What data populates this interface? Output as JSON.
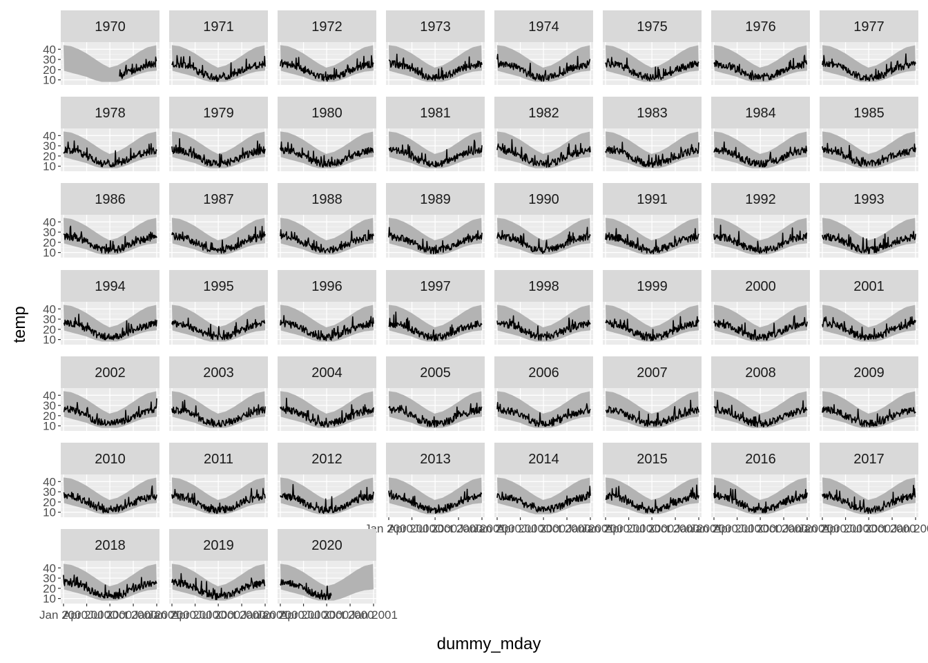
{
  "chart_data": {
    "type": "line",
    "facet_layout": "facet_wrap",
    "ncol": 8,
    "xlabel": "dummy_mday",
    "ylabel": "temp",
    "ylim": [
      5,
      47
    ],
    "y_ticks": [
      10,
      20,
      30,
      40
    ],
    "x_tick_text": [
      "Jan 2000",
      "Apr 2000",
      "Jul 2000",
      "Oct 2000",
      "Jan 2001"
    ],
    "x_tick_doy": [
      0,
      91,
      182,
      274,
      366
    ],
    "grid": true,
    "band_description": "daily min-max envelope across all years",
    "band_color": "#b3b3b3",
    "line_color": "#000000",
    "strip_color": "#d9d9d9",
    "panel_background": "#ebebeb",
    "climatology": {
      "day_of_year": [
        0,
        30,
        60,
        90,
        120,
        150,
        180,
        210,
        240,
        270,
        300,
        330,
        366
      ],
      "band_upper": [
        44,
        43,
        40,
        36,
        31,
        26,
        22,
        24,
        28,
        33,
        38,
        42,
        44
      ],
      "band_lower": [
        19,
        17,
        15,
        13,
        10,
        8,
        8,
        8,
        10,
        13,
        16,
        18,
        19
      ],
      "typical_temp": [
        26,
        25,
        24,
        20,
        16,
        13,
        12,
        13,
        15,
        19,
        22,
        24,
        26
      ]
    },
    "panels": [
      {
        "year": "1970",
        "data_start_doy": 220,
        "data_end_doy": 366
      },
      {
        "year": "1971",
        "data_start_doy": 0,
        "data_end_doy": 366
      },
      {
        "year": "1972",
        "data_start_doy": 0,
        "data_end_doy": 366
      },
      {
        "year": "1973",
        "data_start_doy": 0,
        "data_end_doy": 366
      },
      {
        "year": "1974",
        "data_start_doy": 0,
        "data_end_doy": 366
      },
      {
        "year": "1975",
        "data_start_doy": 0,
        "data_end_doy": 366
      },
      {
        "year": "1976",
        "data_start_doy": 0,
        "data_end_doy": 366
      },
      {
        "year": "1977",
        "data_start_doy": 0,
        "data_end_doy": 366
      },
      {
        "year": "1978",
        "data_start_doy": 0,
        "data_end_doy": 366
      },
      {
        "year": "1979",
        "data_start_doy": 0,
        "data_end_doy": 366
      },
      {
        "year": "1980",
        "data_start_doy": 0,
        "data_end_doy": 366
      },
      {
        "year": "1981",
        "data_start_doy": 0,
        "data_end_doy": 366
      },
      {
        "year": "1982",
        "data_start_doy": 0,
        "data_end_doy": 366
      },
      {
        "year": "1983",
        "data_start_doy": 0,
        "data_end_doy": 366
      },
      {
        "year": "1984",
        "data_start_doy": 0,
        "data_end_doy": 366
      },
      {
        "year": "1985",
        "data_start_doy": 0,
        "data_end_doy": 366
      },
      {
        "year": "1986",
        "data_start_doy": 0,
        "data_end_doy": 366
      },
      {
        "year": "1987",
        "data_start_doy": 0,
        "data_end_doy": 366
      },
      {
        "year": "1988",
        "data_start_doy": 0,
        "data_end_doy": 366
      },
      {
        "year": "1989",
        "data_start_doy": 0,
        "data_end_doy": 366
      },
      {
        "year": "1990",
        "data_start_doy": 0,
        "data_end_doy": 366
      },
      {
        "year": "1991",
        "data_start_doy": 0,
        "data_end_doy": 366
      },
      {
        "year": "1992",
        "data_start_doy": 0,
        "data_end_doy": 366
      },
      {
        "year": "1993",
        "data_start_doy": 0,
        "data_end_doy": 366
      },
      {
        "year": "1994",
        "data_start_doy": 0,
        "data_end_doy": 366
      },
      {
        "year": "1995",
        "data_start_doy": 0,
        "data_end_doy": 366
      },
      {
        "year": "1996",
        "data_start_doy": 0,
        "data_end_doy": 366
      },
      {
        "year": "1997",
        "data_start_doy": 0,
        "data_end_doy": 366
      },
      {
        "year": "1998",
        "data_start_doy": 0,
        "data_end_doy": 366
      },
      {
        "year": "1999",
        "data_start_doy": 0,
        "data_end_doy": 366
      },
      {
        "year": "2000",
        "data_start_doy": 0,
        "data_end_doy": 366
      },
      {
        "year": "2001",
        "data_start_doy": 0,
        "data_end_doy": 366
      },
      {
        "year": "2002",
        "data_start_doy": 0,
        "data_end_doy": 366
      },
      {
        "year": "2003",
        "data_start_doy": 0,
        "data_end_doy": 366
      },
      {
        "year": "2004",
        "data_start_doy": 0,
        "data_end_doy": 366
      },
      {
        "year": "2005",
        "data_start_doy": 0,
        "data_end_doy": 366
      },
      {
        "year": "2006",
        "data_start_doy": 0,
        "data_end_doy": 366
      },
      {
        "year": "2007",
        "data_start_doy": 0,
        "data_end_doy": 366
      },
      {
        "year": "2008",
        "data_start_doy": 0,
        "data_end_doy": 366
      },
      {
        "year": "2009",
        "data_start_doy": 0,
        "data_end_doy": 366
      },
      {
        "year": "2010",
        "data_start_doy": 0,
        "data_end_doy": 366
      },
      {
        "year": "2011",
        "data_start_doy": 0,
        "data_end_doy": 366
      },
      {
        "year": "2012",
        "data_start_doy": 0,
        "data_end_doy": 366
      },
      {
        "year": "2013",
        "data_start_doy": 0,
        "data_end_doy": 366
      },
      {
        "year": "2014",
        "data_start_doy": 0,
        "data_end_doy": 366
      },
      {
        "year": "2015",
        "data_start_doy": 0,
        "data_end_doy": 366
      },
      {
        "year": "2016",
        "data_start_doy": 0,
        "data_end_doy": 366
      },
      {
        "year": "2017",
        "data_start_doy": 0,
        "data_end_doy": 366
      },
      {
        "year": "2018",
        "data_start_doy": 0,
        "data_end_doy": 366
      },
      {
        "year": "2019",
        "data_start_doy": 0,
        "data_end_doy": 366
      },
      {
        "year": "2020",
        "data_start_doy": 0,
        "data_end_doy": 200
      }
    ]
  }
}
